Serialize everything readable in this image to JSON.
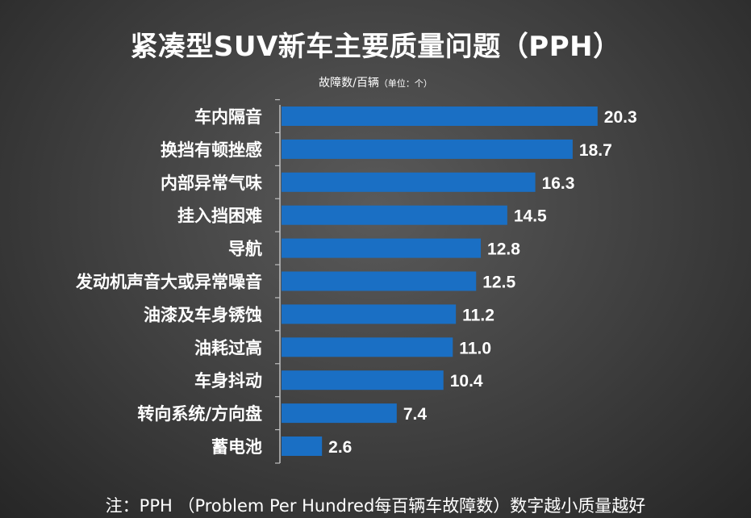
{
  "chart_data": {
    "type": "bar",
    "orientation": "horizontal",
    "title": "紧凑型SUV新车主要质量问题（PPH）",
    "unit_label": "故障数/百辆",
    "unit_note": "（单位：个）",
    "categories": [
      "车内隔音",
      "换挡有顿挫感",
      "内部异常气味",
      "挂入挡困难",
      "导航",
      "发动机声音大或异常噪音",
      "油漆及车身锈蚀",
      "油耗过高",
      "车身抖动",
      "转向系统/方向盘",
      "蓄电池"
    ],
    "values": [
      20.3,
      18.7,
      16.3,
      14.5,
      12.8,
      12.5,
      11.2,
      11.0,
      10.4,
      7.4,
      2.6
    ],
    "value_labels": [
      "20.3",
      "18.7",
      "16.3",
      "14.5",
      "12.8",
      "12.5",
      "11.2",
      "11.0",
      "10.4",
      "7.4",
      "2.6"
    ],
    "xlim": [
      0,
      25
    ],
    "grid": false,
    "legend": "none",
    "bar_color": "#1a6fc4",
    "text_color": "#ffffff",
    "axis_color": "#bfbfbf"
  },
  "footnote": "注：PPH （Problem Per Hundred每百辆车故障数）数字越小质量越好"
}
